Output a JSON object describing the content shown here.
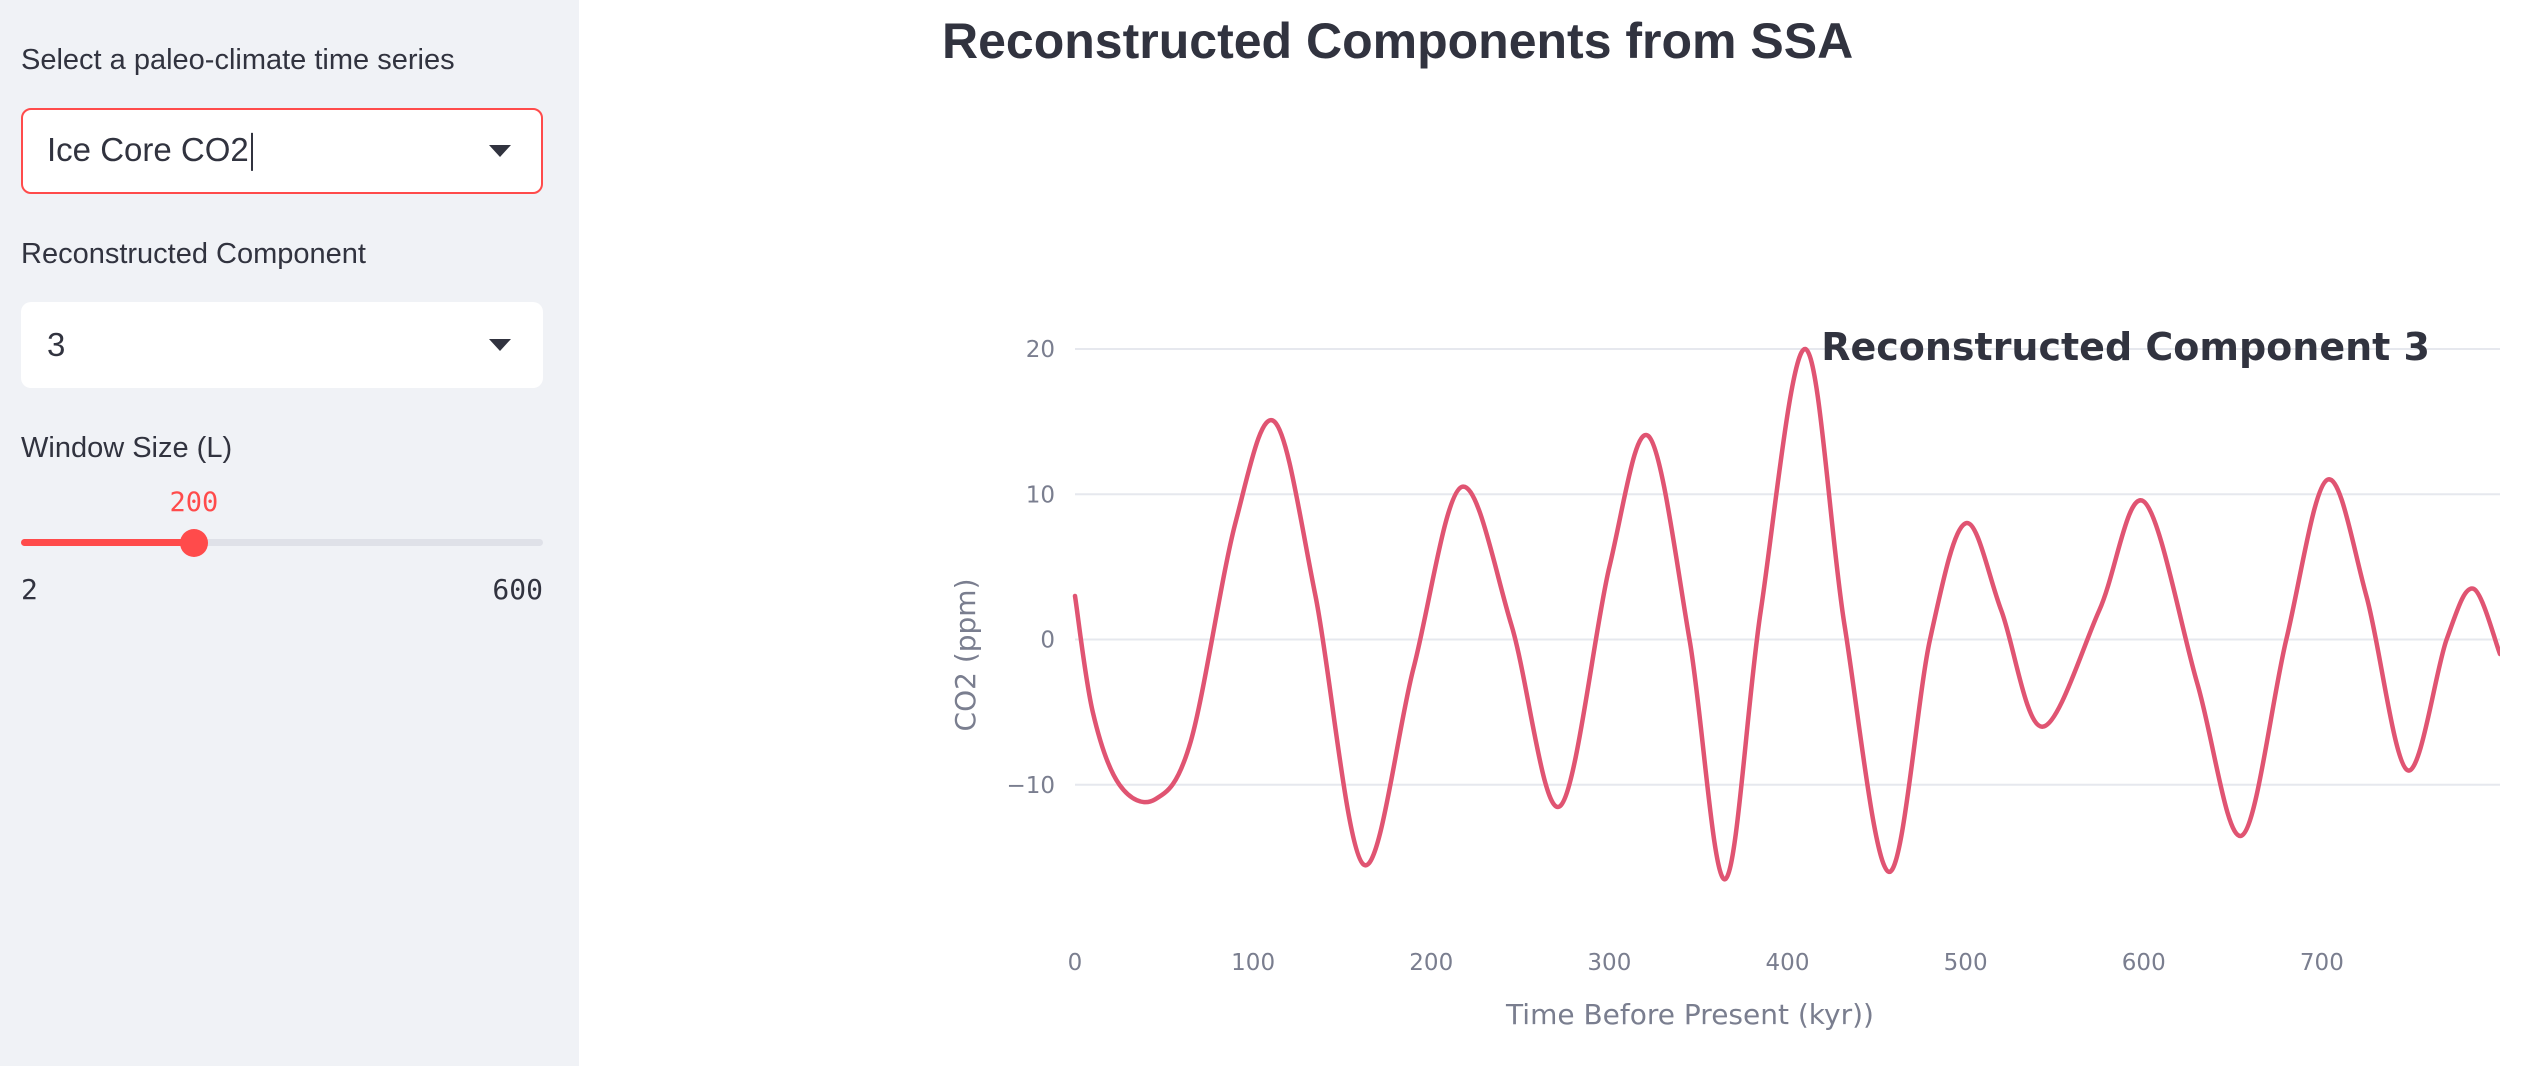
{
  "sidebar": {
    "series_select": {
      "label": "Select a paleo-climate time series",
      "value": "Ice Core CO2"
    },
    "component_select": {
      "label": "Reconstructed Component",
      "value": "3"
    },
    "window_slider": {
      "label": "Window Size (L)",
      "value": 200,
      "min": 2,
      "max": 600
    }
  },
  "main": {
    "title": "Reconstructed Components from SSA"
  },
  "colors": {
    "accent": "#ff4b4b",
    "line": "#e05472",
    "sidebar_bg": "#f0f2f6"
  },
  "chart_data": {
    "type": "line",
    "title": "Reconstructed Component 3",
    "xlabel": "Time Before Present (kyr))",
    "ylabel": "CO2 (ppm)",
    "xlim": [
      0,
      800
    ],
    "ylim": [
      -20,
      22
    ],
    "xticks": [
      0,
      100,
      200,
      300,
      400,
      500,
      600,
      700
    ],
    "yticks": [
      -10,
      0,
      10,
      20
    ],
    "grid": true,
    "series": [
      {
        "x": [
          0,
          10,
          25,
          45,
          65,
          90,
          112,
          135,
          162,
          190,
          217,
          245,
          272,
          300,
          322,
          345,
          365,
          385,
          410,
          432,
          457,
          480,
          500,
          520,
          543,
          575,
          600,
          630,
          655,
          680,
          703,
          725,
          748,
          770,
          785,
          800
        ],
        "y": [
          3,
          -5,
          -10,
          -11,
          -7,
          8,
          15,
          3,
          -15.5,
          -2,
          10.5,
          1,
          -11.5,
          5,
          14,
          0,
          -16.5,
          2,
          20,
          1,
          -16,
          0,
          8,
          2,
          -6,
          2,
          9.5,
          -3,
          -13.5,
          0,
          11,
          3,
          -9,
          0,
          3.5,
          -1
        ]
      }
    ]
  }
}
